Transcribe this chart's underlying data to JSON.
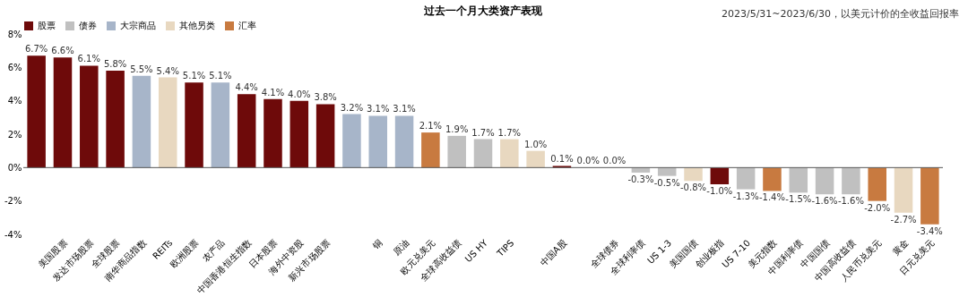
{
  "chart_data": {
    "type": "bar",
    "title": "过去一个月大类资产表现",
    "annotations": [
      "2023/5/31~2023/6/30，以美元计价的全收益回报率"
    ],
    "categories": [
      null,
      "美国股票",
      "发达市场股票",
      "全球股票",
      "南华商品指数",
      "REITs",
      "欧洲股票",
      "农产品",
      "中国香港恒生指数",
      "日本股票",
      "海外中资股",
      "新兴市场股票",
      null,
      "铜",
      "原油",
      "欧元兑美元",
      "全球高收益债",
      "US HY",
      "TIPS",
      null,
      "中国A股",
      null,
      "全球债券",
      "全球利率债",
      "US 1-3",
      "美国国债",
      "创业板指",
      "US 7-10",
      "美元指数",
      "中国利率债",
      "中国国债",
      "中国高收益债",
      "人民币兑美元",
      "黄金",
      "日元兑美元"
    ],
    "series": [
      {
        "name": "股票",
        "color": "#6e0a0a",
        "values": [
          6.7,
          6.6,
          6.1,
          5.8,
          null,
          null,
          5.1,
          null,
          4.4,
          4.1,
          4.0,
          3.8,
          null,
          null,
          null,
          null,
          null,
          null,
          null,
          null,
          0.1,
          null,
          null,
          null,
          null,
          null,
          -1.0,
          null,
          null,
          null,
          null,
          null,
          null,
          null,
          null
        ],
        "value_labels": [
          "6.7%",
          "6.6%",
          "6.1%",
          "5.8%",
          null,
          null,
          "5.1%",
          null,
          "4.4%",
          "4.1%",
          "4.0%",
          "3.8%",
          null,
          null,
          null,
          null,
          null,
          null,
          null,
          null,
          "0.1%",
          null,
          null,
          null,
          null,
          null,
          "-1.0%",
          null,
          null,
          null,
          null,
          null,
          null,
          null,
          null
        ]
      },
      {
        "name": "债券",
        "color": "#c0c0c0",
        "values": [
          null,
          null,
          null,
          null,
          null,
          null,
          null,
          null,
          null,
          null,
          null,
          null,
          null,
          null,
          null,
          null,
          1.9,
          1.7,
          null,
          null,
          null,
          null,
          0.0,
          -0.3,
          -0.5,
          null,
          null,
          -1.3,
          null,
          -1.5,
          -1.6,
          -1.6,
          null,
          null,
          null
        ],
        "value_labels": [
          null,
          null,
          null,
          null,
          null,
          null,
          null,
          null,
          null,
          null,
          null,
          null,
          null,
          null,
          null,
          null,
          "1.9%",
          "1.7%",
          null,
          null,
          null,
          null,
          "0.0%",
          "-0.3%",
          "-0.5%",
          null,
          null,
          "-1.3%",
          null,
          "-1.5%",
          "-1.6%",
          "-1.6%",
          null,
          null,
          null
        ]
      },
      {
        "name": "大宗商品",
        "color": "#a7b5c9",
        "values": [
          null,
          null,
          null,
          null,
          5.5,
          null,
          null,
          5.1,
          null,
          null,
          null,
          null,
          3.2,
          3.1,
          3.1,
          null,
          null,
          null,
          null,
          null,
          null,
          null,
          null,
          null,
          null,
          null,
          null,
          null,
          null,
          null,
          null,
          null,
          null,
          null,
          null
        ],
        "value_labels": [
          null,
          null,
          null,
          null,
          "5.5%",
          null,
          null,
          "5.1%",
          null,
          null,
          null,
          null,
          "3.2%",
          "3.1%",
          "3.1%",
          null,
          null,
          null,
          null,
          null,
          null,
          null,
          null,
          null,
          null,
          null,
          null,
          null,
          null,
          null,
          null,
          null,
          null,
          null,
          null
        ]
      },
      {
        "name": "其他另类",
        "color": "#e8d8c0",
        "values": [
          null,
          null,
          null,
          null,
          null,
          5.4,
          null,
          null,
          null,
          null,
          null,
          null,
          null,
          null,
          null,
          null,
          null,
          null,
          1.7,
          1.0,
          null,
          0.0,
          null,
          null,
          null,
          -0.8,
          null,
          null,
          null,
          null,
          null,
          null,
          null,
          -2.7,
          null
        ],
        "value_labels": [
          null,
          null,
          null,
          null,
          null,
          "5.4%",
          null,
          null,
          null,
          null,
          null,
          null,
          null,
          null,
          null,
          null,
          null,
          null,
          "1.7%",
          "1.0%",
          null,
          "0.0%",
          null,
          null,
          null,
          "-0.8%",
          null,
          null,
          null,
          null,
          null,
          null,
          null,
          "-2.7%",
          null
        ]
      },
      {
        "name": "汇率",
        "color": "#c87a40",
        "values": [
          null,
          null,
          null,
          null,
          null,
          null,
          null,
          null,
          null,
          null,
          null,
          null,
          null,
          null,
          null,
          2.1,
          null,
          null,
          null,
          null,
          null,
          null,
          null,
          null,
          null,
          null,
          null,
          null,
          -1.4,
          null,
          null,
          null,
          -2.0,
          null,
          -3.4
        ],
        "value_labels": [
          null,
          null,
          null,
          null,
          null,
          null,
          null,
          null,
          null,
          null,
          null,
          null,
          null,
          null,
          null,
          "2.1%",
          null,
          null,
          null,
          null,
          null,
          null,
          null,
          null,
          null,
          null,
          null,
          null,
          "-1.4%",
          null,
          null,
          null,
          "-2.0%",
          null,
          "-3.4%"
        ]
      }
    ],
    "ylim": [
      -4,
      8
    ],
    "yticks": [
      {
        "value": -4,
        "label": "-4%"
      },
      {
        "value": -2,
        "label": "-2%"
      },
      {
        "value": 0,
        "label": "0%"
      },
      {
        "value": 2,
        "label": "2%"
      },
      {
        "value": 4,
        "label": "4%"
      },
      {
        "value": 6,
        "label": "6%"
      },
      {
        "value": 8,
        "label": "8%"
      }
    ],
    "legend": "top"
  }
}
